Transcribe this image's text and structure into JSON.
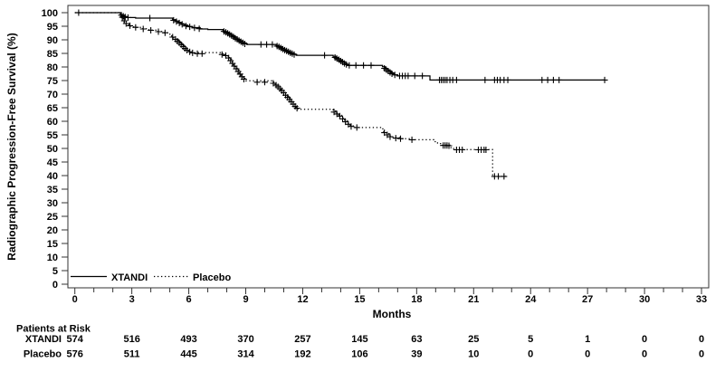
{
  "page": {
    "background": "#ffffff",
    "text_color": "#000000",
    "line_color": "#000000",
    "frame_color": "#333333"
  },
  "chart_data": {
    "type": "line",
    "subtype": "kaplan-meier-step",
    "title": "",
    "xlabel": "Months",
    "ylabel": "Radiographic Progression-Free Survival (%)",
    "xlim": [
      0,
      33
    ],
    "ylim": [
      0,
      100
    ],
    "y_ticks": [
      0,
      5,
      10,
      15,
      20,
      25,
      30,
      35,
      40,
      45,
      50,
      55,
      60,
      65,
      70,
      75,
      80,
      85,
      90,
      95,
      100
    ],
    "x_major_ticks": [
      0,
      3,
      6,
      9,
      12,
      15,
      18,
      21,
      24,
      27,
      30,
      33
    ],
    "x_minor_tick_step": 1,
    "grid": false,
    "legend_position": "inside-bottom-left",
    "series": [
      {
        "name": "XTANDI",
        "line_style": "solid",
        "end_month": 27.9,
        "steps": [
          [
            0,
            100
          ],
          [
            2.4,
            99.3
          ],
          [
            2.5,
            98.9
          ],
          [
            2.6,
            98.5
          ],
          [
            2.75,
            98.2
          ],
          [
            3.2,
            98.0
          ],
          [
            5.15,
            97.4
          ],
          [
            5.3,
            96.9
          ],
          [
            5.45,
            96.4
          ],
          [
            5.6,
            95.9
          ],
          [
            5.75,
            95.4
          ],
          [
            5.95,
            94.9
          ],
          [
            6.2,
            94.5
          ],
          [
            6.6,
            94.0
          ],
          [
            7.0,
            93.8
          ],
          [
            7.8,
            93.3
          ],
          [
            7.95,
            92.7
          ],
          [
            8.1,
            92.1
          ],
          [
            8.25,
            91.4
          ],
          [
            8.4,
            90.7
          ],
          [
            8.55,
            90.0
          ],
          [
            8.7,
            89.4
          ],
          [
            8.85,
            88.8
          ],
          [
            9.05,
            88.3
          ],
          [
            10.6,
            87.9
          ],
          [
            10.75,
            87.4
          ],
          [
            10.9,
            86.8
          ],
          [
            11.05,
            86.2
          ],
          [
            11.2,
            85.6
          ],
          [
            11.35,
            85.1
          ],
          [
            11.5,
            84.7
          ],
          [
            11.65,
            84.3
          ],
          [
            13.6,
            83.9
          ],
          [
            13.75,
            83.3
          ],
          [
            13.9,
            82.6
          ],
          [
            14.05,
            81.9
          ],
          [
            14.2,
            81.2
          ],
          [
            14.35,
            80.6
          ],
          [
            16.2,
            80.1
          ],
          [
            16.35,
            79.4
          ],
          [
            16.5,
            78.6
          ],
          [
            16.65,
            77.8
          ],
          [
            16.8,
            77.1
          ],
          [
            17.0,
            76.7
          ],
          [
            18.7,
            75.2
          ]
        ],
        "censor_marks": [
          [
            0.2,
            100
          ],
          [
            2.45,
            99.1
          ],
          [
            2.55,
            98.7
          ],
          [
            2.65,
            98.4
          ],
          [
            2.8,
            98.2
          ],
          [
            3.95,
            98.0
          ],
          [
            5.2,
            97.2
          ],
          [
            5.35,
            96.7
          ],
          [
            5.5,
            96.2
          ],
          [
            5.65,
            95.7
          ],
          [
            5.85,
            95.1
          ],
          [
            6.05,
            94.8
          ],
          [
            6.3,
            94.4
          ],
          [
            6.55,
            94.1
          ],
          [
            7.85,
            93.1
          ],
          [
            7.95,
            92.8
          ],
          [
            8.05,
            92.4
          ],
          [
            8.15,
            92.0
          ],
          [
            8.25,
            91.6
          ],
          [
            8.35,
            91.1
          ],
          [
            8.45,
            90.6
          ],
          [
            8.55,
            90.2
          ],
          [
            8.65,
            89.7
          ],
          [
            8.75,
            89.3
          ],
          [
            8.85,
            88.9
          ],
          [
            8.95,
            88.5
          ],
          [
            9.8,
            88.3
          ],
          [
            10.1,
            88.3
          ],
          [
            10.4,
            88.3
          ],
          [
            10.65,
            87.7
          ],
          [
            10.75,
            87.4
          ],
          [
            10.85,
            87.0
          ],
          [
            10.95,
            86.6
          ],
          [
            11.05,
            86.2
          ],
          [
            11.15,
            85.9
          ],
          [
            11.25,
            85.6
          ],
          [
            11.35,
            85.2
          ],
          [
            11.45,
            84.9
          ],
          [
            11.55,
            84.6
          ],
          [
            13.15,
            84.3
          ],
          [
            13.7,
            83.5
          ],
          [
            13.8,
            83.1
          ],
          [
            13.9,
            82.7
          ],
          [
            14.0,
            82.2
          ],
          [
            14.1,
            81.8
          ],
          [
            14.2,
            81.3
          ],
          [
            14.3,
            80.9
          ],
          [
            14.45,
            80.6
          ],
          [
            14.8,
            80.6
          ],
          [
            15.2,
            80.6
          ],
          [
            15.6,
            80.6
          ],
          [
            16.3,
            79.5
          ],
          [
            16.4,
            79.0
          ],
          [
            16.5,
            78.5
          ],
          [
            16.6,
            78.0
          ],
          [
            16.7,
            77.5
          ],
          [
            16.85,
            77.1
          ],
          [
            17.1,
            76.7
          ],
          [
            17.25,
            76.7
          ],
          [
            17.4,
            76.7
          ],
          [
            17.55,
            76.7
          ],
          [
            17.9,
            76.7
          ],
          [
            18.3,
            76.7
          ],
          [
            19.2,
            75.2
          ],
          [
            19.3,
            75.2
          ],
          [
            19.4,
            75.2
          ],
          [
            19.5,
            75.2
          ],
          [
            19.6,
            75.2
          ],
          [
            19.75,
            75.2
          ],
          [
            19.9,
            75.2
          ],
          [
            20.1,
            75.2
          ],
          [
            21.6,
            75.2
          ],
          [
            22.1,
            75.2
          ],
          [
            22.25,
            75.2
          ],
          [
            22.4,
            75.2
          ],
          [
            22.6,
            75.2
          ],
          [
            22.8,
            75.2
          ],
          [
            24.6,
            75.2
          ],
          [
            24.9,
            75.2
          ],
          [
            25.2,
            75.2
          ],
          [
            25.5,
            75.2
          ],
          [
            27.9,
            75.2
          ]
        ]
      },
      {
        "name": "Placebo",
        "line_style": "dotted",
        "end_month": 22.8,
        "steps": [
          [
            0,
            100
          ],
          [
            2.4,
            99.0
          ],
          [
            2.5,
            97.8
          ],
          [
            2.6,
            96.6
          ],
          [
            2.7,
            95.6
          ],
          [
            2.85,
            95.1
          ],
          [
            3.1,
            94.6
          ],
          [
            3.5,
            94.1
          ],
          [
            3.9,
            93.6
          ],
          [
            4.3,
            93.1
          ],
          [
            4.7,
            92.6
          ],
          [
            4.95,
            92.1
          ],
          [
            5.1,
            91.4
          ],
          [
            5.2,
            90.7
          ],
          [
            5.3,
            90.0
          ],
          [
            5.45,
            89.2
          ],
          [
            5.55,
            88.5
          ],
          [
            5.65,
            87.8
          ],
          [
            5.75,
            87.1
          ],
          [
            5.85,
            86.4
          ],
          [
            6.0,
            85.8
          ],
          [
            6.15,
            85.3
          ],
          [
            7.7,
            84.9
          ],
          [
            7.9,
            84.4
          ],
          [
            8.05,
            83.7
          ],
          [
            8.15,
            82.8
          ],
          [
            8.25,
            81.8
          ],
          [
            8.35,
            80.8
          ],
          [
            8.45,
            79.8
          ],
          [
            8.55,
            78.8
          ],
          [
            8.65,
            77.8
          ],
          [
            8.75,
            76.8
          ],
          [
            8.85,
            75.8
          ],
          [
            9.0,
            74.9
          ],
          [
            10.4,
            74.4
          ],
          [
            10.55,
            73.6
          ],
          [
            10.7,
            72.7
          ],
          [
            10.85,
            71.7
          ],
          [
            11.0,
            70.6
          ],
          [
            11.1,
            69.5
          ],
          [
            11.25,
            68.4
          ],
          [
            11.4,
            67.3
          ],
          [
            11.5,
            66.2
          ],
          [
            11.6,
            65.2
          ],
          [
            11.75,
            64.4
          ],
          [
            13.6,
            63.8
          ],
          [
            13.75,
            63.0
          ],
          [
            13.9,
            62.2
          ],
          [
            14.05,
            61.2
          ],
          [
            14.2,
            60.2
          ],
          [
            14.35,
            59.2
          ],
          [
            14.5,
            58.3
          ],
          [
            14.7,
            57.7
          ],
          [
            16.1,
            57.2
          ],
          [
            16.25,
            56.3
          ],
          [
            16.4,
            55.4
          ],
          [
            16.55,
            54.6
          ],
          [
            16.75,
            54.0
          ],
          [
            17.1,
            53.6
          ],
          [
            17.75,
            53.2
          ],
          [
            18.9,
            52.5
          ],
          [
            19.1,
            51.8
          ],
          [
            19.35,
            51.2
          ],
          [
            19.75,
            50.3
          ],
          [
            19.95,
            49.6
          ],
          [
            22.0,
            39.7
          ]
        ],
        "censor_marks": [
          [
            2.5,
            98.3
          ],
          [
            2.6,
            97.0
          ],
          [
            2.7,
            96.0
          ],
          [
            2.9,
            95.2
          ],
          [
            3.2,
            94.6
          ],
          [
            3.6,
            94.0
          ],
          [
            4.0,
            93.5
          ],
          [
            4.4,
            93.0
          ],
          [
            4.75,
            92.6
          ],
          [
            5.15,
            91.0
          ],
          [
            5.3,
            90.2
          ],
          [
            5.4,
            89.5
          ],
          [
            5.5,
            88.9
          ],
          [
            5.6,
            88.2
          ],
          [
            5.7,
            87.5
          ],
          [
            5.8,
            86.8
          ],
          [
            5.9,
            86.2
          ],
          [
            6.05,
            85.6
          ],
          [
            6.2,
            85.2
          ],
          [
            6.45,
            84.9
          ],
          [
            6.7,
            84.9
          ],
          [
            7.75,
            84.6
          ],
          [
            7.95,
            84.2
          ],
          [
            8.1,
            83.3
          ],
          [
            8.2,
            82.3
          ],
          [
            8.3,
            81.3
          ],
          [
            8.4,
            80.3
          ],
          [
            8.5,
            79.3
          ],
          [
            8.6,
            78.3
          ],
          [
            8.7,
            77.4
          ],
          [
            8.8,
            76.4
          ],
          [
            8.9,
            75.5
          ],
          [
            9.6,
            74.4
          ],
          [
            10.0,
            74.4
          ],
          [
            10.45,
            74.0
          ],
          [
            10.6,
            73.3
          ],
          [
            10.7,
            72.7
          ],
          [
            10.8,
            72.0
          ],
          [
            10.9,
            71.3
          ],
          [
            11.0,
            70.5
          ],
          [
            11.1,
            69.6
          ],
          [
            11.2,
            68.8
          ],
          [
            11.3,
            68.0
          ],
          [
            11.4,
            67.2
          ],
          [
            11.5,
            66.3
          ],
          [
            11.6,
            65.5
          ],
          [
            11.7,
            64.8
          ],
          [
            13.65,
            63.4
          ],
          [
            13.8,
            62.7
          ],
          [
            13.95,
            61.9
          ],
          [
            14.1,
            60.9
          ],
          [
            14.25,
            59.8
          ],
          [
            14.4,
            58.9
          ],
          [
            14.55,
            58.1
          ],
          [
            14.85,
            57.7
          ],
          [
            16.3,
            55.8
          ],
          [
            16.45,
            55.0
          ],
          [
            16.6,
            54.3
          ],
          [
            16.9,
            53.8
          ],
          [
            17.15,
            53.6
          ],
          [
            17.75,
            53.2
          ],
          [
            19.4,
            51.1
          ],
          [
            19.5,
            51.1
          ],
          [
            19.6,
            51.1
          ],
          [
            19.7,
            51.0
          ],
          [
            20.1,
            49.5
          ],
          [
            20.25,
            49.5
          ],
          [
            20.4,
            49.5
          ],
          [
            21.25,
            49.5
          ],
          [
            21.4,
            49.5
          ],
          [
            21.55,
            49.5
          ],
          [
            21.65,
            49.5
          ],
          [
            22.1,
            39.7
          ],
          [
            22.3,
            39.7
          ],
          [
            22.6,
            39.7
          ]
        ]
      }
    ]
  },
  "risk_table": {
    "title": "Patients at Risk",
    "months": [
      0,
      3,
      6,
      9,
      12,
      15,
      18,
      21,
      24,
      27,
      30,
      33
    ],
    "rows": [
      {
        "label": "XTANDI",
        "values": [
          "574",
          "516",
          "493",
          "370",
          "257",
          "145",
          "63",
          "25",
          "5",
          "1",
          "0",
          "0"
        ]
      },
      {
        "label": "Placebo",
        "values": [
          "576",
          "511",
          "445",
          "314",
          "192",
          "106",
          "39",
          "10",
          "0",
          "0",
          "0",
          "0"
        ]
      }
    ]
  }
}
